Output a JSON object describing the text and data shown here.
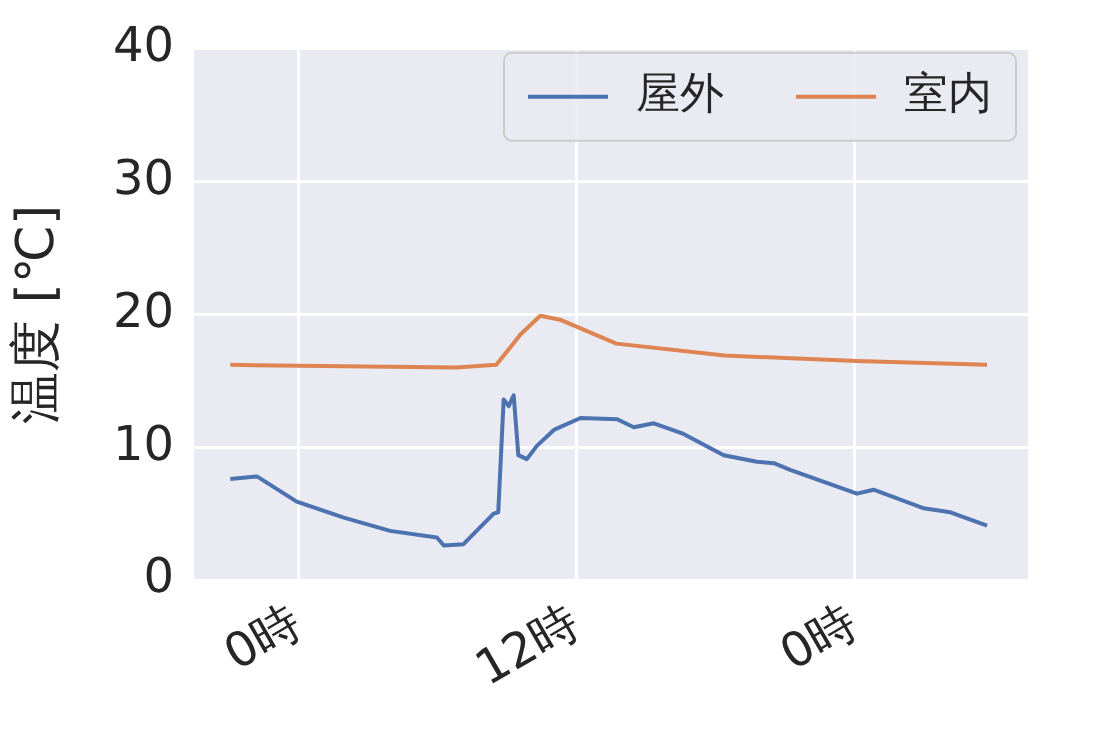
{
  "chart_data": {
    "type": "line",
    "ylabel": "温度 [℃]",
    "xlim": [
      "--01-01T19:30",
      "--01-03T07:30"
    ],
    "xticks": [
      {
        "value": "--01-02T00:00",
        "label": "0時"
      },
      {
        "value": "--01-02T12:00",
        "label": "12時"
      },
      {
        "value": "--01-03T00:00",
        "label": "0時"
      }
    ],
    "ylim": [
      0,
      40
    ],
    "yticks": [
      0,
      10,
      20,
      30,
      40
    ],
    "grid": true,
    "legend": "top right",
    "marker": "none",
    "line_style": "solid",
    "series": [
      {
        "name": "屋外",
        "color": "#4c72b0",
        "x": [
          "--01-01T21:04",
          "--01-01T22:13",
          "--01-01T23:56",
          "--01-02T01:58",
          "--01-02T03:58",
          "--01-02T05:59",
          "--01-02T06:17",
          "--01-02T07:08",
          "--01-02T08:26",
          "--01-02T08:38",
          "--01-02T08:52",
          "--01-02T09:05",
          "--01-02T09:18",
          "--01-02T09:30",
          "--01-02T09:52",
          "--01-02T10:18",
          "--01-02T11:02",
          "--01-02T12:11",
          "--01-02T13:46",
          "--01-02T14:29",
          "--01-02T15:21",
          "--01-02T16:38",
          "--01-02T18:22",
          "--01-02T19:48",
          "--01-02T20:32",
          "--01-02T21:14",
          "--01-03T00:07",
          "--01-03T00:50",
          "--01-03T03:00",
          "--01-03T04:09",
          "--01-03T05:44"
        ],
        "values": [
          7.6,
          7.8,
          5.9,
          4.7,
          3.7,
          3.2,
          2.6,
          2.7,
          5.0,
          5.1,
          13.6,
          13.1,
          13.9,
          9.4,
          9.1,
          10.1,
          11.3,
          12.2,
          12.1,
          11.5,
          11.8,
          11.0,
          9.4,
          8.9,
          8.8,
          8.3,
          6.5,
          6.8,
          5.4,
          5.1,
          4.1
        ]
      },
      {
        "name": "室内",
        "color": "#dd8452",
        "x": [
          "--01-01T21:04",
          "--01-02T06:49",
          "--01-02T08:33",
          "--01-02T09:36",
          "--01-02T10:27",
          "--01-02T11:18",
          "--01-02T13:44",
          "--01-02T18:24",
          "--01-03T00:06",
          "--01-03T05:44"
        ],
        "values": [
          16.2,
          16.0,
          16.2,
          18.5,
          19.9,
          19.6,
          17.8,
          16.9,
          16.5,
          16.2
        ]
      }
    ]
  }
}
